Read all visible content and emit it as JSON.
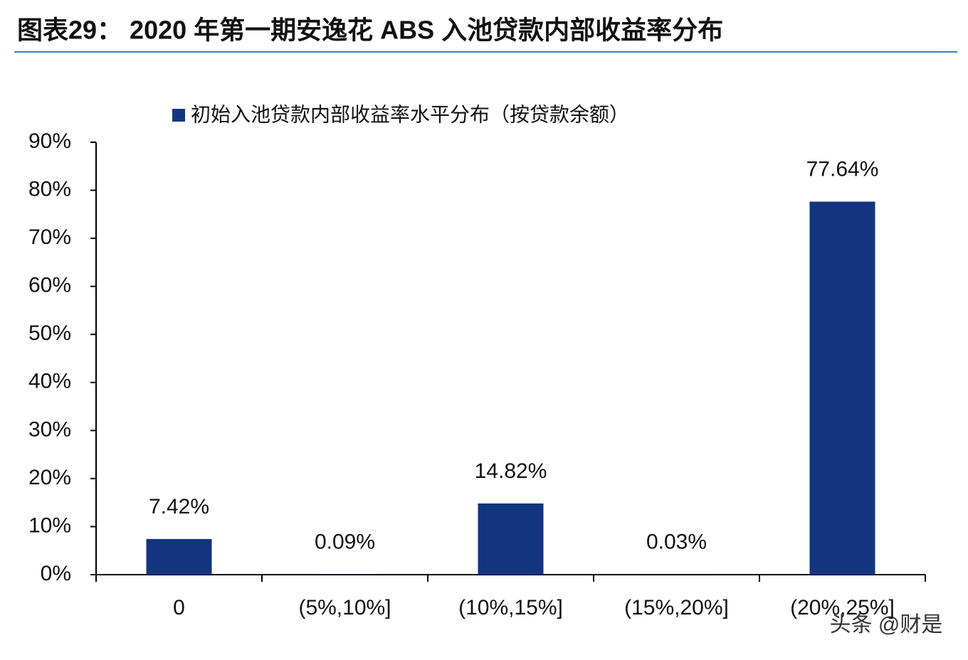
{
  "chart_data": {
    "type": "bar",
    "title": "图表29： 2020 年第一期安逸花 ABS 入池贷款内部收益率分布",
    "categories": [
      "0",
      "(5%,10%]",
      "(10%,15%]",
      "(15%,20%]",
      "(20%,25%]"
    ],
    "series": [
      {
        "name": "初始入池贷款内部收益率水平分布（按贷款余额）",
        "color": "#13357f",
        "values": [
          7.42,
          0.09,
          14.82,
          0.03,
          77.64
        ],
        "value_labels": [
          "7.42%",
          "0.09%",
          "14.82%",
          "0.03%",
          "77.64%"
        ]
      }
    ],
    "ylim": [
      0,
      90
    ],
    "yticks": [
      {
        "value": 0,
        "label": "0%"
      },
      {
        "value": 10,
        "label": "10%"
      },
      {
        "value": 20,
        "label": "20%"
      },
      {
        "value": 30,
        "label": "30%"
      },
      {
        "value": 40,
        "label": "40%"
      },
      {
        "value": 50,
        "label": "50%"
      },
      {
        "value": 60,
        "label": "60%"
      },
      {
        "value": 70,
        "label": "70%"
      },
      {
        "value": 80,
        "label": "80%"
      },
      {
        "value": 90,
        "label": "90%"
      }
    ],
    "legend": "top",
    "watermark": "头条 @财是"
  }
}
